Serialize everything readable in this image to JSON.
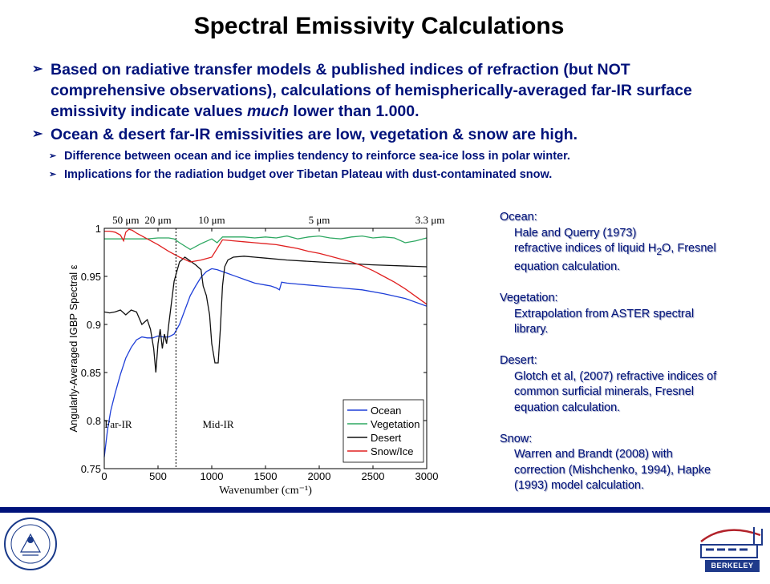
{
  "title": "Spectral Emissivity Calculations",
  "bullets": [
    {
      "text": [
        "Based on radiative transfer models & published indices of refraction (but NOT comprehensive observations), calculations of hemispherically-averaged far-IR surface emissivity indicate values ",
        "much",
        " lower than 1.000."
      ],
      "sub": []
    },
    {
      "text": [
        "Ocean & desert far-IR emissivities are low, vegetation & snow are high."
      ],
      "sub": [
        "Difference between ocean and ice implies tendency to reinforce sea-ice loss in polar winter.",
        "Implications for the radiation budget over Tibetan Plateau with dust-contaminated snow."
      ]
    }
  ],
  "references": {
    "ocean": {
      "heading": "Ocean:",
      "line1": "Hale and Querry (1973)",
      "line2_pre": "refractive indices of liquid H",
      "line2_sub": "2",
      "line2_post": "O, Fresnel",
      "line3": "equation calculation."
    },
    "vegetation": {
      "heading": "Vegetation:",
      "line1": "Extrapolation from ASTER spectral",
      "line2": "library."
    },
    "desert": {
      "heading": "Desert:",
      "line1": "Glotch et al, (2007) refractive indices of",
      "line2": "common surficial minerals, Fresnel",
      "line3": "equation calculation."
    },
    "snow": {
      "heading": "Snow:",
      "line1": "Warren and Brandt (2008) with",
      "line2": "correction (Mishchenko, 1994), Hapke",
      "line3": "(1993) model calculation."
    }
  },
  "logos": {
    "uc_seal_text": "THE UNIVERSITY OF CALIFORNIA",
    "uc_seal_year": "1868",
    "lab_text": "BERKELEY LAB"
  },
  "colors": {
    "text_navy": "#00127a",
    "ocean": "#1f3fd8",
    "vegetation": "#2ea862",
    "desert": "#111111",
    "snow_ice": "#e02020"
  },
  "chart_data": {
    "type": "line",
    "xlabel": "Wavenumber (cm⁻¹)",
    "ylabel": "Angularly-Averaged IGBP Spectral ε",
    "xlim": [
      0,
      3000
    ],
    "ylim": [
      0.75,
      1.0
    ],
    "xticks": [
      0,
      500,
      1000,
      1500,
      2000,
      2500,
      3000
    ],
    "yticks": [
      0.75,
      0.8,
      0.85,
      0.9,
      0.95,
      1
    ],
    "ytick_labels": [
      "0.75",
      "0.8",
      "0.85",
      "0.9",
      "0.95",
      "1"
    ],
    "top_axis_labels": [
      {
        "label": "50 μm",
        "x": 200
      },
      {
        "label": "20 μm",
        "x": 500
      },
      {
        "label": "10 μm",
        "x": 1000
      },
      {
        "label": "5 μm",
        "x": 2000
      },
      {
        "label": "3.3 μm",
        "x": 3030
      }
    ],
    "region_labels": [
      {
        "label": "Far-IR",
        "x": 130,
        "y": 0.7925
      },
      {
        "label": "Mid-IR",
        "x": 1060,
        "y": 0.7925
      }
    ],
    "divider_x": 667,
    "legend_position": "bottom-right",
    "grid": false,
    "series": [
      {
        "name": "Ocean",
        "color": "#1f3fd8",
        "x": [
          0,
          30,
          60,
          100,
          150,
          200,
          250,
          300,
          350,
          400,
          450,
          500,
          550,
          600,
          650,
          700,
          750,
          800,
          850,
          900,
          950,
          1000,
          1050,
          1100,
          1150,
          1200,
          1250,
          1300,
          1350,
          1400,
          1450,
          1500,
          1550,
          1600,
          1630,
          1650,
          1700,
          1800,
          1900,
          2000,
          2200,
          2400,
          2600,
          2800,
          3000
        ],
        "y": [
          0.762,
          0.79,
          0.81,
          0.828,
          0.848,
          0.865,
          0.876,
          0.884,
          0.887,
          0.886,
          0.886,
          0.888,
          0.887,
          0.887,
          0.89,
          0.9,
          0.915,
          0.93,
          0.94,
          0.949,
          0.955,
          0.958,
          0.957,
          0.955,
          0.953,
          0.951,
          0.949,
          0.947,
          0.945,
          0.943,
          0.942,
          0.941,
          0.94,
          0.938,
          0.936,
          0.944,
          0.943,
          0.942,
          0.941,
          0.94,
          0.938,
          0.936,
          0.932,
          0.927,
          0.919
        ]
      },
      {
        "name": "Vegetation",
        "color": "#2ea862",
        "x": [
          0,
          100,
          200,
          300,
          400,
          500,
          600,
          650,
          700,
          800,
          900,
          1000,
          1050,
          1100,
          1200,
          1300,
          1400,
          1500,
          1600,
          1700,
          1800,
          1900,
          2000,
          2100,
          2200,
          2300,
          2400,
          2500,
          2600,
          2700,
          2800,
          2900,
          3000
        ],
        "y": [
          0.989,
          0.989,
          0.989,
          0.989,
          0.989,
          0.99,
          0.99,
          0.989,
          0.985,
          0.978,
          0.984,
          0.989,
          0.985,
          0.991,
          0.991,
          0.991,
          0.99,
          0.991,
          0.99,
          0.992,
          0.989,
          0.991,
          0.992,
          0.99,
          0.989,
          0.991,
          0.992,
          0.99,
          0.991,
          0.99,
          0.985,
          0.987,
          0.99
        ]
      },
      {
        "name": "Desert",
        "color": "#111111",
        "x": [
          0,
          50,
          100,
          150,
          200,
          250,
          300,
          350,
          400,
          430,
          460,
          480,
          500,
          520,
          540,
          560,
          580,
          600,
          650,
          700,
          750,
          800,
          850,
          900,
          920,
          950,
          980,
          1000,
          1030,
          1060,
          1080,
          1100,
          1120,
          1150,
          1200,
          1300,
          1400,
          1500,
          1700,
          2000,
          2500,
          3000
        ],
        "y": [
          0.913,
          0.912,
          0.913,
          0.915,
          0.91,
          0.915,
          0.913,
          0.9,
          0.905,
          0.895,
          0.875,
          0.85,
          0.88,
          0.895,
          0.875,
          0.89,
          0.88,
          0.9,
          0.945,
          0.965,
          0.97,
          0.966,
          0.962,
          0.957,
          0.94,
          0.93,
          0.91,
          0.88,
          0.86,
          0.86,
          0.895,
          0.94,
          0.96,
          0.967,
          0.97,
          0.971,
          0.97,
          0.969,
          0.967,
          0.965,
          0.962,
          0.96
        ]
      },
      {
        "name": "Snow/Ice",
        "color": "#e02020",
        "x": [
          0,
          50,
          100,
          150,
          180,
          200,
          230,
          260,
          300,
          400,
          500,
          600,
          700,
          800,
          900,
          1000,
          1100,
          1200,
          1300,
          1400,
          1500,
          1600,
          1700,
          1800,
          1900,
          2000,
          2100,
          2200,
          2300,
          2400,
          2500,
          2600,
          2700,
          2800,
          2900,
          3000
        ],
        "y": [
          0.997,
          0.997,
          0.996,
          0.993,
          0.987,
          0.996,
          0.999,
          0.998,
          0.995,
          0.989,
          0.983,
          0.976,
          0.97,
          0.965,
          0.967,
          0.97,
          0.988,
          0.987,
          0.986,
          0.985,
          0.984,
          0.983,
          0.981,
          0.979,
          0.976,
          0.974,
          0.971,
          0.968,
          0.965,
          0.961,
          0.956,
          0.95,
          0.944,
          0.937,
          0.929,
          0.921
        ]
      }
    ]
  }
}
